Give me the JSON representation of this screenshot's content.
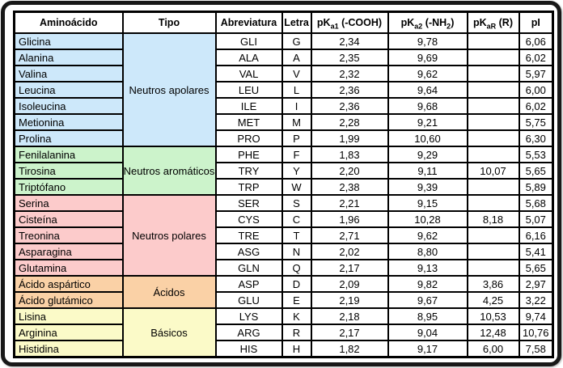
{
  "frame": {
    "border_color": "#181818",
    "background": "#ffffff"
  },
  "chart_data": {
    "type": "table",
    "columns": [
      {
        "id": "aminoacido",
        "segments": [
          {
            "t": "Aminoácido"
          }
        ]
      },
      {
        "id": "tipo",
        "segments": [
          {
            "t": "Tipo"
          }
        ]
      },
      {
        "id": "abreviatura",
        "segments": [
          {
            "t": "Abreviatura"
          }
        ]
      },
      {
        "id": "letra",
        "segments": [
          {
            "t": "Letra"
          }
        ]
      },
      {
        "id": "pka1",
        "segments": [
          {
            "t": "pK"
          },
          {
            "t": "a1",
            "sub": true
          },
          {
            "t": " (-COOH)"
          }
        ]
      },
      {
        "id": "pka2",
        "segments": [
          {
            "t": "pK"
          },
          {
            "t": "a2",
            "sub": true
          },
          {
            "t": " (-NH"
          },
          {
            "t": "2",
            "sub": true
          },
          {
            "t": ")"
          }
        ]
      },
      {
        "id": "pkar",
        "segments": [
          {
            "t": "pK"
          },
          {
            "t": "aR",
            "sub": true
          },
          {
            "t": " (R)"
          }
        ]
      },
      {
        "id": "pi",
        "segments": [
          {
            "t": "pI"
          }
        ]
      }
    ],
    "groups": [
      {
        "label": "Neutros apolares",
        "color": "#CDE8FA",
        "rows": [
          {
            "name": "Glicina",
            "abbr": "GLI",
            "letter": "G",
            "pka1": "2,34",
            "pka2": "9,78",
            "pkar": "",
            "pi": "6,06"
          },
          {
            "name": "Alanina",
            "abbr": "ALA",
            "letter": "A",
            "pka1": "2,35",
            "pka2": "9,69",
            "pkar": "",
            "pi": "6,02"
          },
          {
            "name": "Valina",
            "abbr": "VAL",
            "letter": "V",
            "pka1": "2,32",
            "pka2": "9,62",
            "pkar": "",
            "pi": "5,97"
          },
          {
            "name": "Leucina",
            "abbr": "LEU",
            "letter": "L",
            "pka1": "2,36",
            "pka2": "9,64",
            "pkar": "",
            "pi": "6,00"
          },
          {
            "name": "Isoleucina",
            "abbr": "ILE",
            "letter": "I",
            "pka1": "2,36",
            "pka2": "9,68",
            "pkar": "",
            "pi": "6,02"
          },
          {
            "name": "Metionina",
            "abbr": "MET",
            "letter": "M",
            "pka1": "2,28",
            "pka2": "9,21",
            "pkar": "",
            "pi": "5,75"
          },
          {
            "name": "Prolina",
            "abbr": "PRO",
            "letter": "P",
            "pka1": "1,99",
            "pka2": "10,60",
            "pkar": "",
            "pi": "6,30"
          }
        ]
      },
      {
        "label": "Neutros aromáticos",
        "color": "#CCF3CB",
        "rows": [
          {
            "name": "Fenilalanina",
            "abbr": "PHE",
            "letter": "F",
            "pka1": "1,83",
            "pka2": "9,29",
            "pkar": "",
            "pi": "5,53"
          },
          {
            "name": "Tirosina",
            "abbr": "TRY",
            "letter": "Y",
            "pka1": "2,20",
            "pka2": "9,11",
            "pkar": "10,07",
            "pi": "5,65"
          },
          {
            "name": "Triptófano",
            "abbr": "TRP",
            "letter": "W",
            "pka1": "2,38",
            "pka2": "9,39",
            "pkar": "",
            "pi": "5,89"
          }
        ]
      },
      {
        "label": "Neutros polares",
        "color": "#FCCBCB",
        "rows": [
          {
            "name": "Serina",
            "abbr": "SER",
            "letter": "S",
            "pka1": "2,21",
            "pka2": "9,15",
            "pkar": "",
            "pi": "5,68"
          },
          {
            "name": "Cisteína",
            "abbr": "CYS",
            "letter": "C",
            "pka1": "1,96",
            "pka2": "10,28",
            "pkar": "8,18",
            "pi": "5,07"
          },
          {
            "name": "Treonina",
            "abbr": "TRE",
            "letter": "T",
            "pka1": "2,71",
            "pka2": "9,62",
            "pkar": "",
            "pi": "6,16"
          },
          {
            "name": "Asparagina",
            "abbr": "ASG",
            "letter": "N",
            "pka1": "2,02",
            "pka2": "8,80",
            "pkar": "",
            "pi": "5,41"
          },
          {
            "name": "Glutamina",
            "abbr": "GLN",
            "letter": "Q",
            "pka1": "2,17",
            "pka2": "9,13",
            "pkar": "",
            "pi": "5,65"
          }
        ]
      },
      {
        "label": "Ácidos",
        "color": "#FAD1A6",
        "rows": [
          {
            "name": "Ácido aspártico",
            "abbr": "ASP",
            "letter": "D",
            "pka1": "2,09",
            "pka2": "9,82",
            "pkar": "3,86",
            "pi": "2,97"
          },
          {
            "name": "Ácido glutámico",
            "abbr": "GLU",
            "letter": "E",
            "pka1": "2,19",
            "pka2": "9,67",
            "pkar": "4,25",
            "pi": "3,22"
          }
        ]
      },
      {
        "label": "Básicos",
        "color": "#FBFAC8",
        "rows": [
          {
            "name": "Lisina",
            "abbr": "LYS",
            "letter": "K",
            "pka1": "2,18",
            "pka2": "8,95",
            "pkar": "10,53",
            "pi": "9,74"
          },
          {
            "name": "Arginina",
            "abbr": "ARG",
            "letter": "R",
            "pka1": "2,17",
            "pka2": "9,04",
            "pkar": "12,48",
            "pi": "10,76"
          },
          {
            "name": "Histidina",
            "abbr": "HIS",
            "letter": "H",
            "pka1": "1,82",
            "pka2": "9,17",
            "pkar": "6,00",
            "pi": "7,58"
          }
        ]
      }
    ]
  }
}
